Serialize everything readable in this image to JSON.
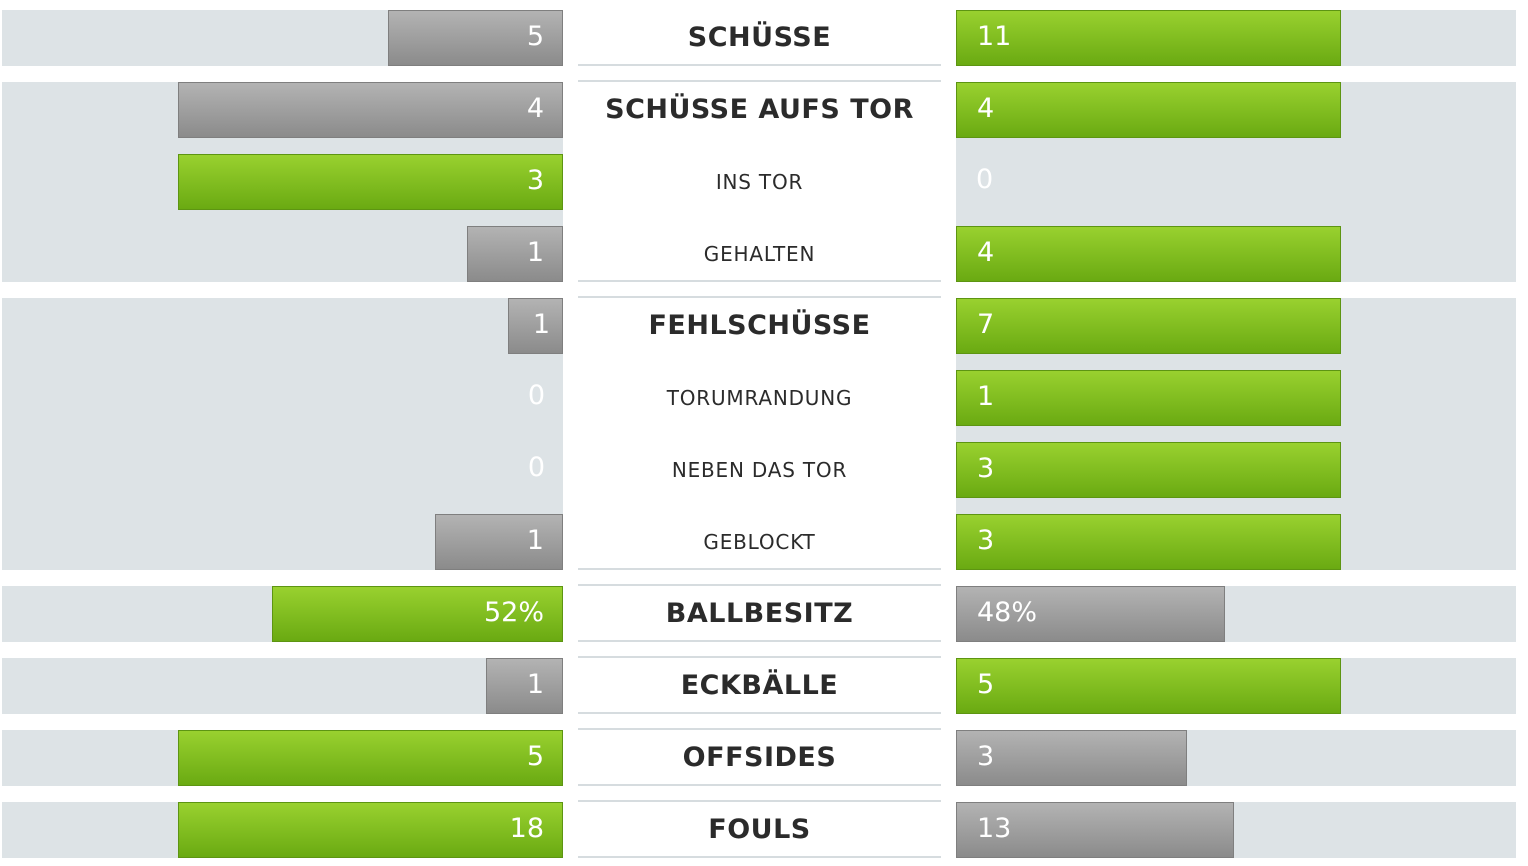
{
  "chart_data": {
    "type": "bar",
    "categories": [
      "SCHÜSSE",
      "SCHÜSSE AUFS TOR",
      "INS TOR",
      "GEHALTEN",
      "FEHLSCHÜSSE",
      "TORUMRANDUNG",
      "NEBEN DAS TOR",
      "GEBLOCKT",
      "BALLBESITZ",
      "ECKBÄLLE",
      "OFFSIDES",
      "FOULS"
    ],
    "series": [
      {
        "values": [
          5,
          4,
          3,
          1,
          1,
          0,
          0,
          1,
          52,
          1,
          5,
          18
        ]
      },
      {
        "values": [
          11,
          4,
          0,
          4,
          7,
          1,
          3,
          3,
          48,
          5,
          3,
          13
        ]
      }
    ],
    "rows": [
      {
        "label": "SCHÜSSE",
        "kind": "main",
        "left": "5",
        "right": "11",
        "left_value": 5,
        "right_value": 11,
        "left_color": "gray",
        "right_color": "green"
      },
      {
        "label": "SCHÜSSE AUFS TOR",
        "kind": "main",
        "left": "4",
        "right": "4",
        "left_value": 4,
        "right_value": 4,
        "left_color": "gray",
        "right_color": "green"
      },
      {
        "label": "INS TOR",
        "kind": "sub",
        "left": "3",
        "right": "0",
        "left_value": 3,
        "right_value": 0,
        "left_color": "green",
        "right_color": "none"
      },
      {
        "label": "GEHALTEN",
        "kind": "sub",
        "left": "1",
        "right": "4",
        "left_value": 1,
        "right_value": 4,
        "left_color": "gray",
        "right_color": "green"
      },
      {
        "label": "FEHLSCHÜSSE",
        "kind": "main",
        "left": "1",
        "right": "7",
        "left_value": 1,
        "right_value": 7,
        "left_color": "gray",
        "right_color": "green"
      },
      {
        "label": "TORUMRANDUNG",
        "kind": "sub",
        "left": "0",
        "right": "1",
        "left_value": 0,
        "right_value": 1,
        "left_color": "none",
        "right_color": "green"
      },
      {
        "label": "NEBEN DAS TOR",
        "kind": "sub",
        "left": "0",
        "right": "3",
        "left_value": 0,
        "right_value": 3,
        "left_color": "none",
        "right_color": "green"
      },
      {
        "label": "GEBLOCKT",
        "kind": "sub",
        "left": "1",
        "right": "3",
        "left_value": 1,
        "right_value": 3,
        "left_color": "gray",
        "right_color": "green"
      },
      {
        "label": "BALLBESITZ",
        "kind": "main",
        "left": "52%",
        "right": "48%",
        "left_value": 52,
        "right_value": 48,
        "left_color": "green",
        "right_color": "gray"
      },
      {
        "label": "ECKBÄLLE",
        "kind": "main",
        "left": "1",
        "right": "5",
        "left_value": 1,
        "right_value": 5,
        "left_color": "gray",
        "right_color": "green"
      },
      {
        "label": "OFFSIDES",
        "kind": "main",
        "left": "5",
        "right": "3",
        "left_value": 5,
        "right_value": 3,
        "left_color": "green",
        "right_color": "gray"
      },
      {
        "label": "FOULS",
        "kind": "main",
        "left": "18",
        "right": "13",
        "left_value": 18,
        "right_value": 13,
        "left_color": "green",
        "right_color": "gray"
      }
    ],
    "groups": [
      [
        0
      ],
      [
        1,
        2,
        3
      ],
      [
        4,
        5,
        6,
        7
      ],
      [
        8
      ],
      [
        9
      ],
      [
        10
      ],
      [
        11
      ]
    ],
    "colors": {
      "green": "#7fbf1f",
      "gray": "#9e9e9e",
      "background": "#dde3e6"
    }
  }
}
